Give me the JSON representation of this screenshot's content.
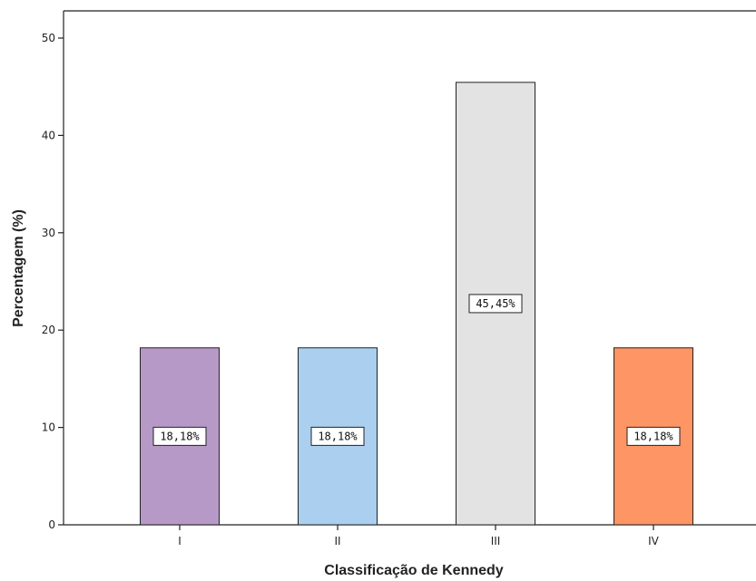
{
  "chart_data": {
    "type": "bar",
    "categories": [
      "I",
      "II",
      "III",
      "IV"
    ],
    "values": [
      18.18,
      18.18,
      45.45,
      18.18
    ],
    "data_labels": [
      "18,18%",
      "18,18%",
      "45,45%",
      "18,18%"
    ],
    "bar_colors": [
      "#b799c7",
      "#abcfee",
      "#e3e3e3",
      "#fd9565"
    ],
    "xlabel": "Classificação de Kennedy",
    "ylabel": "Percentagem (%)",
    "ylim": [
      0,
      53
    ],
    "yticks": [
      0,
      10,
      20,
      30,
      40,
      50
    ],
    "grid": false,
    "legend": "none"
  }
}
